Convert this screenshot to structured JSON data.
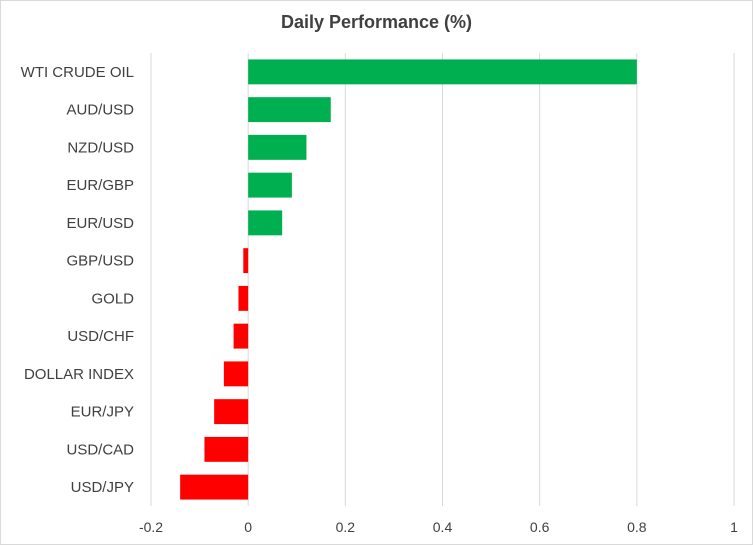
{
  "chart_data": {
    "type": "bar",
    "orientation": "horizontal",
    "title": "Daily Performance (%)",
    "xlabel": "",
    "ylabel": "",
    "categories": [
      "WTI CRUDE OIL",
      "AUD/USD",
      "NZD/USD",
      "EUR/GBP",
      "EUR/USD",
      "GBP/USD",
      "GOLD",
      "USD/CHF",
      "DOLLAR INDEX",
      "EUR/JPY",
      "USD/CAD",
      "USD/JPY"
    ],
    "values": [
      0.8,
      0.17,
      0.12,
      0.09,
      0.07,
      -0.01,
      -0.02,
      -0.03,
      -0.05,
      -0.07,
      -0.09,
      -0.14
    ],
    "xlim": [
      -0.2,
      1
    ],
    "xticks": [
      -0.2,
      0,
      0.2,
      0.4,
      0.6,
      0.8,
      1
    ],
    "xtick_labels": [
      "-0.2",
      "0",
      "0.2",
      "0.4",
      "0.6",
      "0.8",
      "1"
    ],
    "grid": true,
    "legend": "none",
    "colors": {
      "positive": "#00b050",
      "negative": "#ff0000",
      "grid": "#d9d9d9",
      "text": "#404040"
    }
  }
}
